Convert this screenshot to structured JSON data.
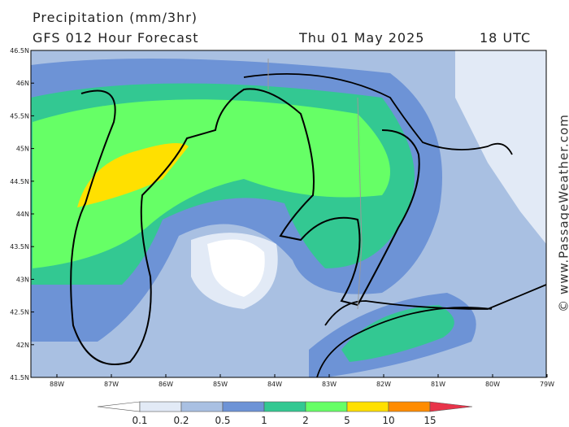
{
  "header": {
    "title": "Precipitation (mm/3hr)",
    "subtitle": "GFS 012 Hour Forecast",
    "date": "Thu 01 May 2025",
    "time": "18 UTC"
  },
  "map": {
    "lat_labels": [
      "46.5N",
      "46N",
      "45.5N",
      "45N",
      "44.5N",
      "44N",
      "43.5N",
      "43N",
      "42.5N",
      "42N",
      "41.5N"
    ],
    "lon_labels": [
      "88W",
      "87W",
      "86W",
      "85W",
      "84W",
      "83W",
      "82W",
      "81W",
      "80W",
      "79W"
    ]
  },
  "legend": {
    "ticks": [
      "0.1",
      "0.2",
      "0.5",
      "1",
      "2",
      "5",
      "10",
      "15"
    ],
    "colors": [
      "#ffffff",
      "#e2eaf6",
      "#a9c0e2",
      "#6d93d6",
      "#33c892",
      "#66ff66",
      "#ffe000",
      "#ff8c00",
      "#e8344a"
    ]
  },
  "watermark": "© www.PassageWeather.com"
}
